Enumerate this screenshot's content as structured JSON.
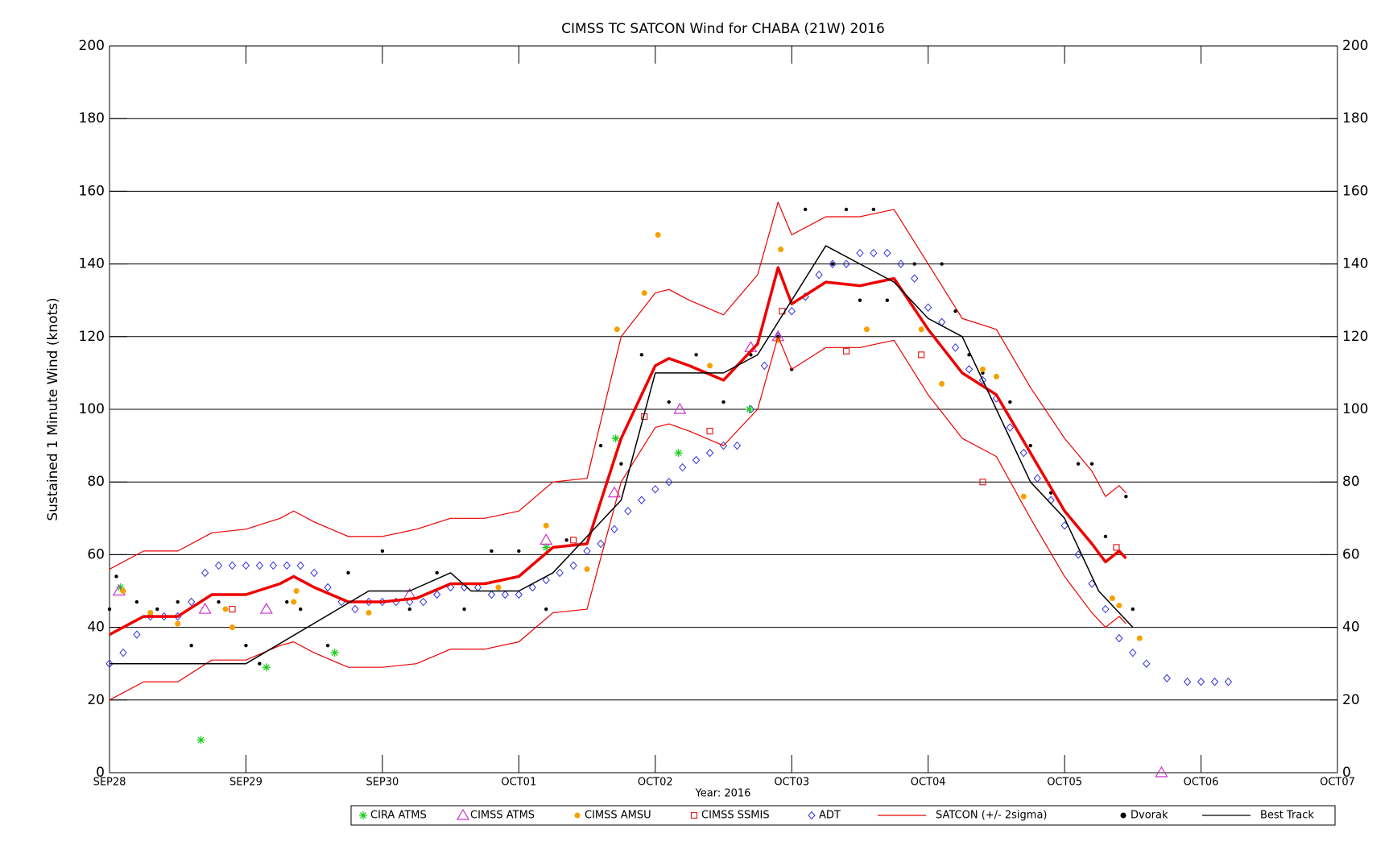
{
  "chart_data": {
    "type": "scatter",
    "title": "CIMSS TC SATCON Wind for CHABA (21W) 2016",
    "x_label": "Year: 2016",
    "y_label": "Sustained 1 Minute Wind (knots)",
    "xlim": [
      0,
      9
    ],
    "xticks": [
      {
        "value": 0,
        "label": "SEP28"
      },
      {
        "value": 1,
        "label": "SEP29"
      },
      {
        "value": 2,
        "label": "SEP30"
      },
      {
        "value": 3,
        "label": "OCT01"
      },
      {
        "value": 4,
        "label": "OCT02"
      },
      {
        "value": 5,
        "label": "OCT03"
      },
      {
        "value": 6,
        "label": "OCT04"
      },
      {
        "value": 7,
        "label": "OCT05"
      },
      {
        "value": 8,
        "label": "OCT06"
      },
      {
        "value": 9,
        "label": "OCT07"
      }
    ],
    "ylim": [
      0,
      200
    ],
    "yticks": [
      0,
      20,
      40,
      60,
      80,
      100,
      120,
      140,
      160,
      180,
      200
    ],
    "grid": true,
    "legend": "bottom",
    "series": [
      {
        "name": "CIRA ATMS",
        "color": "#22cc22",
        "marker": "asterisk",
        "x": [
          0.08,
          0.67,
          1.15,
          1.65,
          3.2,
          3.71,
          4.17,
          4.69
        ],
        "values": [
          51,
          9,
          29,
          33,
          62,
          92,
          88,
          100
        ]
      },
      {
        "name": "CIMSS ATMS",
        "color": "#cc33cc",
        "marker": "triangle",
        "x": [
          0.07,
          0.7,
          1.15,
          2.2,
          3.2,
          3.7,
          4.18,
          4.7,
          4.9,
          7.71
        ],
        "values": [
          50,
          45,
          45,
          49,
          64,
          77,
          100,
          117,
          120,
          0
        ]
      },
      {
        "name": "CIMSS AMSU",
        "color": "#f5a000",
        "marker": "circle",
        "x": [
          0.1,
          0.3,
          0.5,
          0.85,
          0.9,
          1.35,
          1.37,
          1.9,
          2.85,
          3.2,
          3.5,
          3.72,
          3.92,
          4.02,
          4.4,
          4.9,
          4.92,
          5.55,
          5.95,
          6.1,
          6.4,
          6.5,
          6.7,
          7.35,
          7.4,
          7.55
        ],
        "values": [
          50,
          44,
          41,
          45,
          40,
          47,
          50,
          44,
          51,
          68,
          56,
          122,
          132,
          148,
          112,
          119,
          144,
          122,
          122,
          107,
          111,
          109,
          76,
          48,
          46,
          37
        ]
      },
      {
        "name": "CIMSS SSMIS",
        "color": "#dd2222",
        "marker": "square",
        "x": [
          0.9,
          3.4,
          3.92,
          4.4,
          4.93,
          5.4,
          5.95,
          6.4,
          7.38
        ],
        "values": [
          45,
          64,
          98,
          94,
          127,
          116,
          115,
          80,
          62
        ]
      },
      {
        "name": "ADT",
        "color": "#3333dd",
        "marker": "diamond",
        "x": [
          0.0,
          0.1,
          0.2,
          0.3,
          0.4,
          0.5,
          0.6,
          0.7,
          0.8,
          0.9,
          1.0,
          1.1,
          1.2,
          1.3,
          1.4,
          1.5,
          1.6,
          1.7,
          1.8,
          1.9,
          2.0,
          2.1,
          2.2,
          2.3,
          2.4,
          2.5,
          2.6,
          2.7,
          2.8,
          2.9,
          3.0,
          3.1,
          3.2,
          3.3,
          3.4,
          3.5,
          3.6,
          3.7,
          3.8,
          3.9,
          4.0,
          4.1,
          4.2,
          4.3,
          4.4,
          4.5,
          4.6,
          4.7,
          4.8,
          4.9,
          5.0,
          5.1,
          5.2,
          5.3,
          5.4,
          5.5,
          5.6,
          5.7,
          5.8,
          5.9,
          6.0,
          6.1,
          6.2,
          6.3,
          6.4,
          6.5,
          6.6,
          6.7,
          6.8,
          6.9,
          7.0,
          7.1,
          7.2,
          7.3,
          7.4,
          7.5,
          7.6,
          7.75,
          7.9,
          8.0,
          8.1,
          8.2
        ],
        "values": [
          30,
          33,
          38,
          43,
          43,
          43,
          47,
          55,
          57,
          57,
          57,
          57,
          57,
          57,
          57,
          55,
          51,
          47,
          45,
          47,
          47,
          47,
          47,
          47,
          49,
          51,
          51,
          51,
          49,
          49,
          49,
          51,
          53,
          55,
          57,
          61,
          63,
          67,
          72,
          75,
          78,
          80,
          84,
          86,
          88,
          90,
          90,
          100,
          112,
          120,
          127,
          131,
          137,
          140,
          140,
          143,
          143,
          143,
          140,
          136,
          128,
          124,
          117,
          111,
          108,
          103,
          95,
          88,
          81,
          75,
          68,
          60,
          52,
          45,
          37,
          33,
          30,
          26,
          25,
          25,
          25,
          25
        ]
      },
      {
        "name": "SATCON (+/- 2sigma)",
        "color": "#ee0000",
        "marker": "band-line",
        "x": [
          0,
          0.25,
          0.5,
          0.75,
          1,
          1.25,
          1.35,
          1.5,
          1.75,
          2,
          2.25,
          2.5,
          2.75,
          3,
          3.25,
          3.5,
          3.75,
          4,
          4.1,
          4.25,
          4.5,
          4.75,
          4.9,
          5,
          5.25,
          5.5,
          5.75,
          6,
          6.25,
          6.5,
          6.75,
          7,
          7.2,
          7.3,
          7.4,
          7.45
        ],
        "values": [
          38,
          43,
          43,
          49,
          49,
          52,
          54,
          51,
          47,
          47,
          48,
          52,
          52,
          54,
          62,
          63,
          92,
          112,
          114,
          112,
          108,
          118,
          139,
          129,
          135,
          134,
          136,
          122,
          110,
          104,
          88,
          72,
          63,
          58,
          61,
          59
        ],
        "upper": [
          56,
          61,
          61,
          66,
          67,
          70,
          72,
          69,
          65,
          65,
          67,
          70,
          70,
          72,
          80,
          81,
          120,
          132,
          133,
          130,
          126,
          137,
          157,
          148,
          153,
          153,
          155,
          140,
          125,
          122,
          106,
          92,
          83,
          76,
          79,
          77
        ],
        "lower": [
          20,
          25,
          25,
          31,
          31,
          35,
          36,
          33,
          29,
          29,
          30,
          34,
          34,
          36,
          44,
          45,
          80,
          95,
          96,
          94,
          90,
          100,
          120,
          111,
          117,
          117,
          119,
          104,
          92,
          87,
          70,
          54,
          44,
          40,
          43,
          41
        ]
      },
      {
        "name": "Dvorak",
        "color": "#000000",
        "marker": "dot",
        "x": [
          0.0,
          0.05,
          0.2,
          0.35,
          0.5,
          0.6,
          0.8,
          1.0,
          1.1,
          1.3,
          1.4,
          1.6,
          1.75,
          2.0,
          2.2,
          2.4,
          2.6,
          2.8,
          3.0,
          3.2,
          3.35,
          3.6,
          3.75,
          3.9,
          4.1,
          4.3,
          4.5,
          4.7,
          4.9,
          5.0,
          5.1,
          5.3,
          5.4,
          5.5,
          5.6,
          5.7,
          5.9,
          6.1,
          6.2,
          6.3,
          6.4,
          6.6,
          6.75,
          6.9,
          7.1,
          7.2,
          7.3,
          7.45,
          7.5
        ],
        "values": [
          45,
          54,
          47,
          45,
          47,
          35,
          47,
          35,
          30,
          47,
          45,
          35,
          55,
          61,
          45,
          55,
          45,
          61,
          61,
          45,
          64,
          90,
          85,
          115,
          102,
          115,
          102,
          115,
          120,
          111,
          155,
          140,
          155,
          130,
          155,
          130,
          140,
          140,
          127,
          115,
          110,
          102,
          90,
          77,
          85,
          85,
          65,
          76,
          45
        ]
      },
      {
        "name": "Best Track",
        "color": "#000000",
        "marker": "line",
        "x": [
          0.0,
          1.0,
          1.9,
          2.2,
          2.5,
          2.65,
          3.0,
          3.25,
          3.5,
          3.75,
          4.0,
          4.5,
          4.75,
          5.0,
          5.25,
          5.5,
          5.75,
          6.0,
          6.25,
          6.5,
          6.75,
          7.0,
          7.25,
          7.5
        ],
        "values": [
          30,
          30,
          50,
          50,
          55,
          50,
          50,
          55,
          65,
          75,
          110,
          110,
          115,
          130,
          145,
          140,
          135,
          125,
          120,
          100,
          80,
          70,
          50,
          40
        ]
      }
    ]
  }
}
